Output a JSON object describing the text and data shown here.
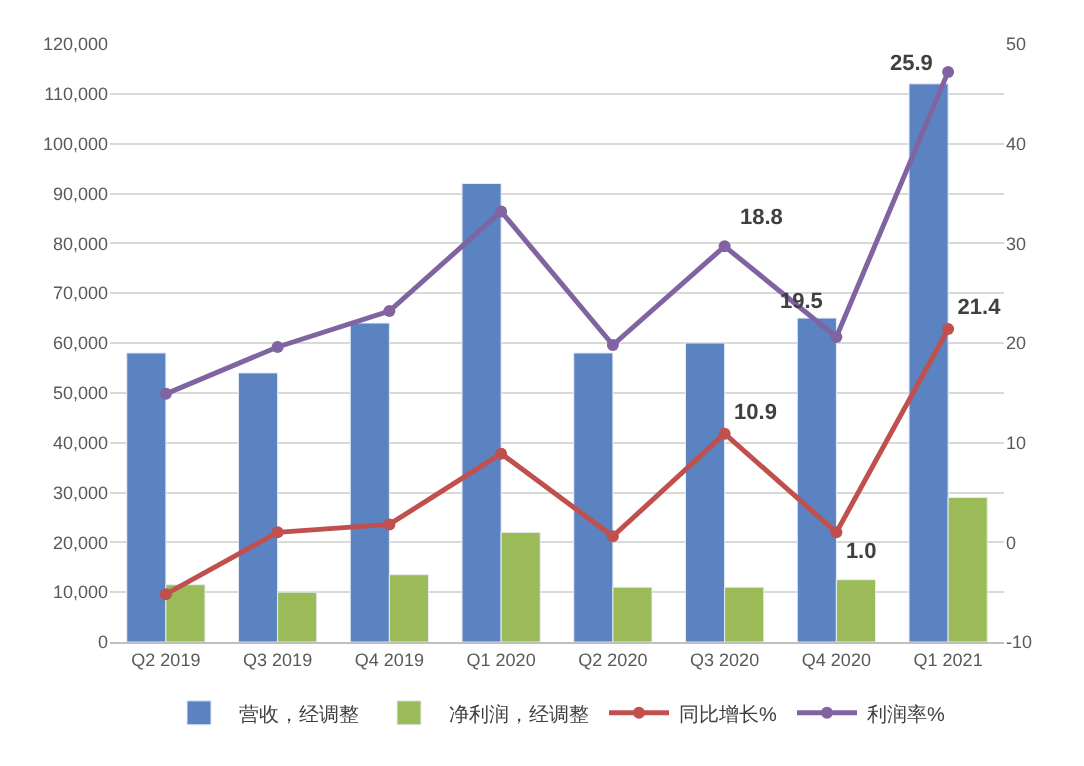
{
  "chart_data": {
    "type": "bar",
    "categories": [
      "Q2 2019",
      "Q3 2019",
      "Q4 2019",
      "Q1 2020",
      "Q2 2020",
      "Q3 2020",
      "Q4 2020",
      "Q1 2021"
    ],
    "series": [
      {
        "name": "营收，经调整",
        "color": "#5b82c1",
        "values": [
          58000,
          54000,
          64000,
          92000,
          58000,
          60000,
          65000,
          112000
        ]
      },
      {
        "name": "净利润，经调整",
        "color": "#9bbb59",
        "values": [
          11500,
          10000,
          13500,
          22000,
          11000,
          11000,
          12500,
          29000
        ]
      },
      {
        "name": "同比增长%",
        "type": "line",
        "axis": "y2",
        "color": "#c0504d",
        "values": [
          -5.2,
          1.0,
          1.8,
          8.9,
          0.6,
          10.9,
          1.0,
          21.4
        ],
        "value_labels": [
          null,
          null,
          null,
          null,
          null,
          "10.9",
          "1.0",
          "21.4"
        ]
      },
      {
        "name": "利润率%",
        "type": "line",
        "axis": "y2",
        "color": "#8064a2",
        "values": [
          14.9,
          19.6,
          23.2,
          33.2,
          19.8,
          29.7,
          20.6,
          47.2
        ]
      }
    ],
    "ylim": [
      0,
      120000
    ],
    "yticks": [
      {
        "value": 0,
        "label": "0"
      },
      {
        "value": 10000,
        "label": "10,000"
      },
      {
        "value": 20000,
        "label": "20,000"
      },
      {
        "value": 30000,
        "label": "30,000"
      },
      {
        "value": 40000,
        "label": "40,000"
      },
      {
        "value": 50000,
        "label": "50,000"
      },
      {
        "value": 60000,
        "label": "60,000"
      },
      {
        "value": 70000,
        "label": "70,000"
      },
      {
        "value": 80000,
        "label": "80,000"
      },
      {
        "value": 90000,
        "label": "90,000"
      },
      {
        "value": 100000,
        "label": "100,000"
      },
      {
        "value": 110000,
        "label": "110,000"
      },
      {
        "value": 120000,
        "label": "120,000"
      }
    ],
    "y2lim": [
      -10,
      50
    ],
    "y2ticks": [
      -10,
      0,
      10,
      20,
      30,
      40,
      50
    ],
    "annotations": [
      "18.8",
      "19.5",
      "25.9"
    ],
    "grid": "y",
    "legend": "bottom",
    "marker": "circle",
    "line_style": "solid"
  }
}
